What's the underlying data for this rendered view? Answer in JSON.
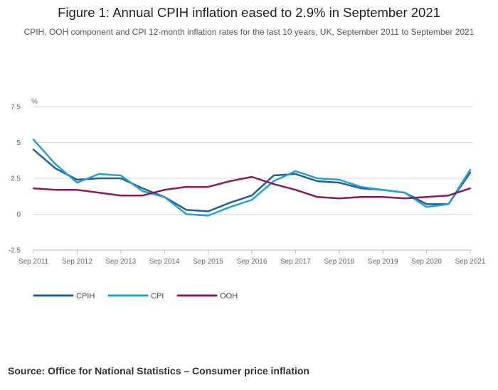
{
  "figure": {
    "title": "Figure 1: Annual CPIH inflation eased to 2.9% in September 2021",
    "subtitle": "CPIH, OOH component and CPI 12-month inflation rates for the last 10 years, UK, September 2011 to September 2021",
    "source": "Source: Office for National Statistics – Consumer price inflation"
  },
  "chart_data": {
    "type": "line",
    "ylabel": "%",
    "ylim": [
      -2.5,
      7.5
    ],
    "yticks": [
      "-2.5",
      "0",
      "2.5",
      "5",
      "7.5"
    ],
    "xticks": [
      "Sep 2011",
      "Sep 2012",
      "Sep 2013",
      "Sep 2014",
      "Sep 2015",
      "Sep 2016",
      "Sep 2017",
      "Sep 2018",
      "Sep 2019",
      "Sep 2020",
      "Sep 2021"
    ],
    "xlim": [
      "Sep 2011",
      "Sep 2021"
    ],
    "grid": "horizontal",
    "legend_position": "bottom-left",
    "series": [
      {
        "name": "CPIH",
        "color": "#206095",
        "points": [
          [
            "Sep 2011",
            4.5
          ],
          [
            "Mar 2012",
            3.2
          ],
          [
            "Sep 2012",
            2.4
          ],
          [
            "Mar 2013",
            2.5
          ],
          [
            "Sep 2013",
            2.5
          ],
          [
            "Mar 2014",
            1.8
          ],
          [
            "Sep 2014",
            1.2
          ],
          [
            "Mar 2015",
            0.3
          ],
          [
            "Sep 2015",
            0.2
          ],
          [
            "Mar 2016",
            0.8
          ],
          [
            "Sep 2016",
            1.3
          ],
          [
            "Mar 2017",
            2.7
          ],
          [
            "Sep 2017",
            2.8
          ],
          [
            "Mar 2018",
            2.3
          ],
          [
            "Sep 2018",
            2.2
          ],
          [
            "Mar 2019",
            1.8
          ],
          [
            "Sep 2019",
            1.7
          ],
          [
            "Mar 2020",
            1.5
          ],
          [
            "Sep 2020",
            0.7
          ],
          [
            "Mar 2021",
            0.7
          ],
          [
            "Sep 2021",
            2.9
          ]
        ]
      },
      {
        "name": "CPI",
        "color": "#27A0CC",
        "points": [
          [
            "Sep 2011",
            5.2
          ],
          [
            "Mar 2012",
            3.5
          ],
          [
            "Sep 2012",
            2.2
          ],
          [
            "Mar 2013",
            2.8
          ],
          [
            "Sep 2013",
            2.7
          ],
          [
            "Mar 2014",
            1.6
          ],
          [
            "Sep 2014",
            1.2
          ],
          [
            "Mar 2015",
            0.0
          ],
          [
            "Sep 2015",
            -0.1
          ],
          [
            "Mar 2016",
            0.5
          ],
          [
            "Sep 2016",
            1.0
          ],
          [
            "Mar 2017",
            2.3
          ],
          [
            "Sep 2017",
            3.0
          ],
          [
            "Mar 2018",
            2.5
          ],
          [
            "Sep 2018",
            2.4
          ],
          [
            "Mar 2019",
            1.9
          ],
          [
            "Sep 2019",
            1.7
          ],
          [
            "Mar 2020",
            1.5
          ],
          [
            "Sep 2020",
            0.5
          ],
          [
            "Mar 2021",
            0.7
          ],
          [
            "Sep 2021",
            3.1
          ]
        ]
      },
      {
        "name": "OOH",
        "color": "#871A5B",
        "points": [
          [
            "Sep 2011",
            1.8
          ],
          [
            "Mar 2012",
            1.7
          ],
          [
            "Sep 2012",
            1.7
          ],
          [
            "Mar 2013",
            1.5
          ],
          [
            "Sep 2013",
            1.3
          ],
          [
            "Mar 2014",
            1.3
          ],
          [
            "Sep 2014",
            1.7
          ],
          [
            "Mar 2015",
            1.9
          ],
          [
            "Sep 2015",
            1.9
          ],
          [
            "Mar 2016",
            2.3
          ],
          [
            "Sep 2016",
            2.6
          ],
          [
            "Mar 2017",
            2.1
          ],
          [
            "Sep 2017",
            1.7
          ],
          [
            "Mar 2018",
            1.2
          ],
          [
            "Sep 2018",
            1.1
          ],
          [
            "Mar 2019",
            1.2
          ],
          [
            "Sep 2019",
            1.2
          ],
          [
            "Mar 2020",
            1.1
          ],
          [
            "Sep 2020",
            1.2
          ],
          [
            "Mar 2021",
            1.3
          ],
          [
            "Sep 2021",
            1.8
          ]
        ]
      }
    ]
  }
}
